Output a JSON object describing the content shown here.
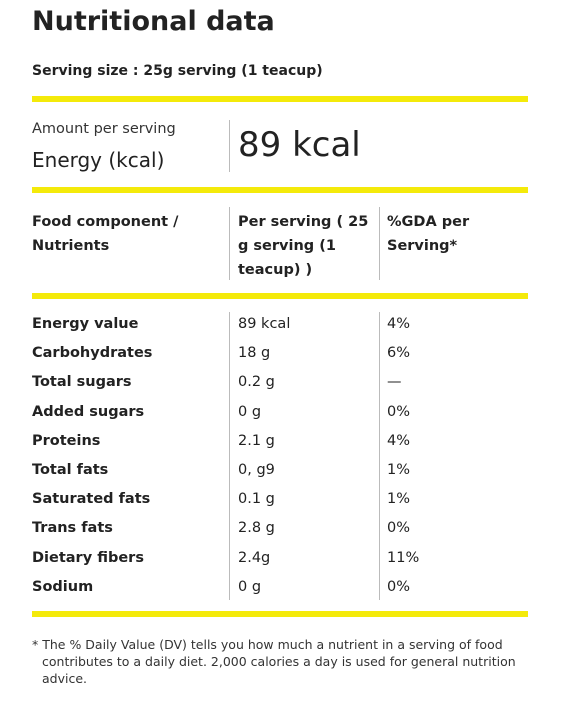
{
  "title": "Nutritional data",
  "serving_size": "Serving size : 25g serving (1 teacup)",
  "energy": {
    "caption": "Amount per serving",
    "label": "Energy (kcal)",
    "value": "89 kcal"
  },
  "table": {
    "headers": [
      "Food component / Nutrients",
      "Per serving ( 25 g serving (1 teacup) )",
      "%GDA per Serving*"
    ],
    "rows": [
      [
        "Energy value",
        "89 kcal",
        "4%"
      ],
      [
        "Carbohydrates",
        "18 g",
        "6%"
      ],
      [
        "Total sugars",
        "0.2 g",
        "—"
      ],
      [
        "Added sugars",
        "0 g",
        "0%"
      ],
      [
        "Proteins",
        "2.1 g",
        "4%"
      ],
      [
        "Total fats",
        "0, g9",
        "1%"
      ],
      [
        "Saturated fats",
        "0.1 g",
        "1%"
      ],
      [
        "Trans fats",
        "2.8 g",
        "0%"
      ],
      [
        "Dietary fibers",
        "2.4g",
        "11%"
      ],
      [
        "Sodium",
        "0 g",
        "0%"
      ]
    ]
  },
  "footnote": "* The % Daily Value (DV) tells you how much a nutrient in a serving of food contributes to a daily diet. 2,000 calories a day is used for general nutrition advice."
}
